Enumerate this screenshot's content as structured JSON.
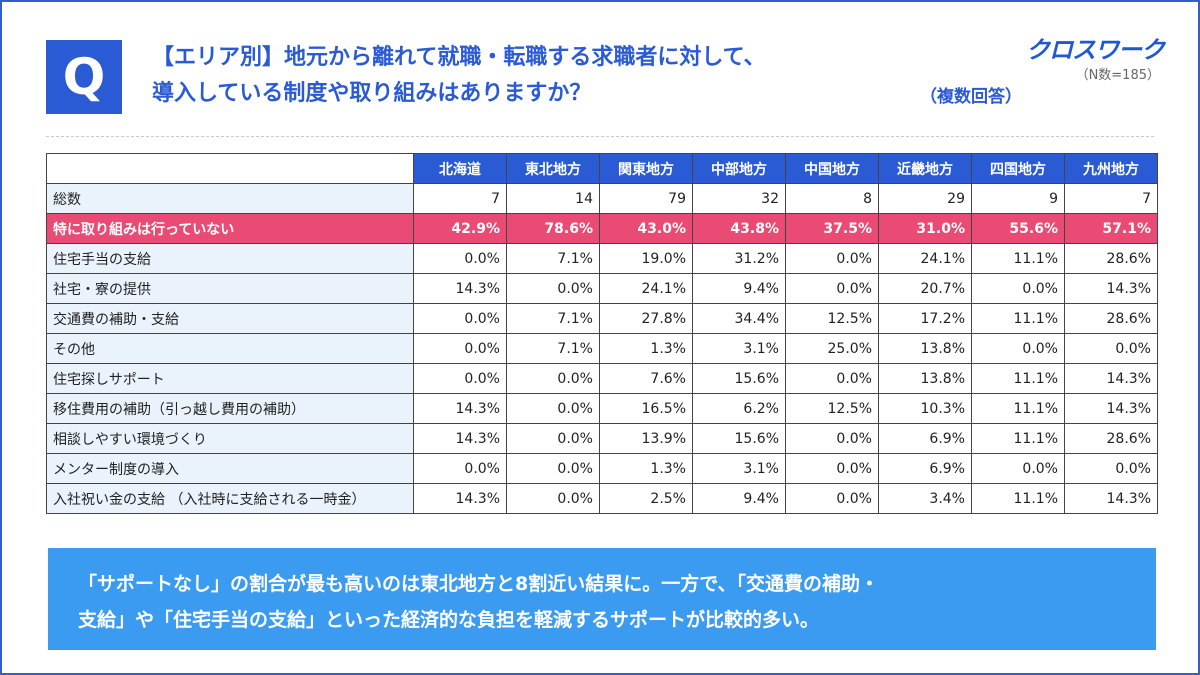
{
  "header": {
    "q_mark": "Q",
    "title_line1": "【エリア別】地元から離れて就職・転職する求職者に対して、",
    "title_line2": "導入している制度や取り組みはありますか？",
    "multi_answer_note": "（複数回答）",
    "brand": "クロスワーク",
    "sample_size": "（N数=185）"
  },
  "table": {
    "columns": [
      "北海道",
      "東北地方",
      "関東地方",
      "中部地方",
      "中国地方",
      "近畿地方",
      "四国地方",
      "九州地方"
    ],
    "total_row": {
      "label": "総数",
      "values": [
        "7",
        "14",
        "79",
        "32",
        "8",
        "29",
        "9",
        "7"
      ]
    },
    "highlight_row": {
      "label": "特に取り組みは行っていない",
      "values": [
        "42.9%",
        "78.6%",
        "43.0%",
        "43.8%",
        "37.5%",
        "31.0%",
        "55.6%",
        "57.1%"
      ]
    },
    "rows": [
      {
        "label": "住宅手当の支給",
        "values": [
          "0.0%",
          "7.1%",
          "19.0%",
          "31.2%",
          "0.0%",
          "24.1%",
          "11.1%",
          "28.6%"
        ]
      },
      {
        "label": "社宅・寮の提供",
        "values": [
          "14.3%",
          "0.0%",
          "24.1%",
          "9.4%",
          "0.0%",
          "20.7%",
          "0.0%",
          "14.3%"
        ]
      },
      {
        "label": "交通費の補助・支給",
        "values": [
          "0.0%",
          "7.1%",
          "27.8%",
          "34.4%",
          "12.5%",
          "17.2%",
          "11.1%",
          "28.6%"
        ]
      },
      {
        "label": "その他",
        "values": [
          "0.0%",
          "7.1%",
          "1.3%",
          "3.1%",
          "25.0%",
          "13.8%",
          "0.0%",
          "0.0%"
        ]
      },
      {
        "label": "住宅探しサポート",
        "values": [
          "0.0%",
          "0.0%",
          "7.6%",
          "15.6%",
          "0.0%",
          "13.8%",
          "11.1%",
          "14.3%"
        ]
      },
      {
        "label": "移住費用の補助（引っ越し費用の補助）",
        "values": [
          "14.3%",
          "0.0%",
          "16.5%",
          "6.2%",
          "12.5%",
          "10.3%",
          "11.1%",
          "14.3%"
        ]
      },
      {
        "label": "相談しやすい環境づくり",
        "values": [
          "14.3%",
          "0.0%",
          "13.9%",
          "15.6%",
          "0.0%",
          "6.9%",
          "11.1%",
          "28.6%"
        ]
      },
      {
        "label": "メンター制度の導入",
        "values": [
          "0.0%",
          "0.0%",
          "1.3%",
          "3.1%",
          "0.0%",
          "6.9%",
          "0.0%",
          "0.0%"
        ]
      },
      {
        "label": "入社祝い金の支給 （入社時に支給される一時金）",
        "values": [
          "14.3%",
          "0.0%",
          "2.5%",
          "9.4%",
          "0.0%",
          "3.4%",
          "11.1%",
          "14.3%"
        ]
      }
    ]
  },
  "summary": {
    "line1": "「サポートなし」の割合が最も高いのは東北地方と8割近い結果に。一方で、「交通費の補助・",
    "line2": "支給」や「住宅手当の支給」といった経済的な負担を軽減するサポートが比較的多い。"
  },
  "colors": {
    "primary_blue": "#2b5bd4",
    "highlight_pink": "#ea4b74",
    "summary_blue": "#3a9bf0",
    "label_bg": "#eaf3fc"
  }
}
